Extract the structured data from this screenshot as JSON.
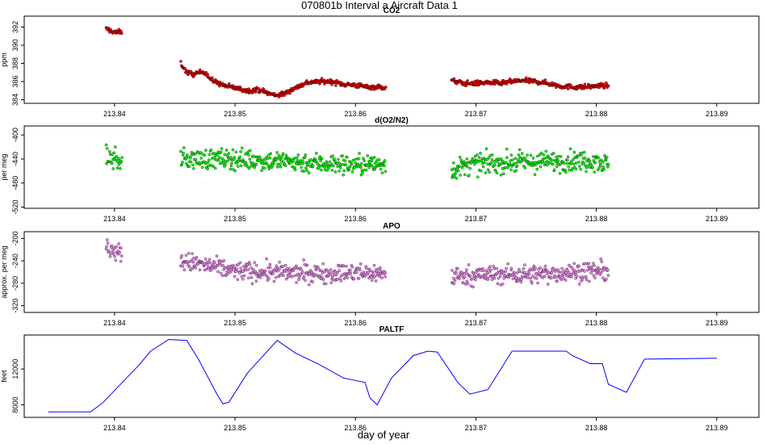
{
  "figure_title": "070801b   Interval a Aircraft Data 1",
  "xlabel": "day of year",
  "colors": {
    "co2_fill": "#ff0000",
    "o2n2_fill": "#00ff00",
    "apo_fill": "#ee82ee",
    "paltf_line": "#0000ff",
    "marker_edge": "#000000"
  },
  "chart_data": [
    {
      "type": "scatter",
      "title": "CO2",
      "ylabel": "ppm",
      "xlim": [
        213.8325,
        213.8935
      ],
      "x_ticks": [
        213.84,
        213.85,
        213.86,
        213.87,
        213.88,
        213.89
      ],
      "ylim": [
        383.6,
        393.2
      ],
      "y_ticks": [
        384,
        386,
        388,
        390,
        392
      ],
      "y_tick_labels": [
        "384",
        "386",
        "388",
        "390",
        "392"
      ],
      "noise": 0.25,
      "segments": [
        {
          "x": [
            213.8393,
            213.8397,
            213.8401,
            213.8406
          ],
          "y": [
            391.8,
            391.6,
            391.4,
            391.5
          ]
        },
        {
          "x": [
            213.8455,
            213.846,
            213.8465,
            213.8475,
            213.848,
            213.849,
            213.85,
            213.851,
            213.852,
            213.853,
            213.8535,
            213.854,
            213.855,
            213.856,
            213.857,
            213.858,
            213.859,
            213.86,
            213.861,
            213.862,
            213.8625
          ],
          "y": [
            388.0,
            387.0,
            386.8,
            387.1,
            386.2,
            385.6,
            385.3,
            385.0,
            385.1,
            384.6,
            384.5,
            384.6,
            385.3,
            385.9,
            386.0,
            386.0,
            385.7,
            385.6,
            385.4,
            385.4,
            385.3
          ]
        },
        {
          "x": [
            213.868,
            213.869,
            213.87,
            213.871,
            213.872,
            213.873,
            213.874,
            213.875,
            213.876,
            213.877,
            213.878,
            213.879,
            213.88,
            213.881
          ],
          "y": [
            386.1,
            385.8,
            385.8,
            385.9,
            385.8,
            386.0,
            386.1,
            386.0,
            385.8,
            385.5,
            385.4,
            385.4,
            385.5,
            385.6
          ]
        }
      ]
    },
    {
      "type": "scatter",
      "title": "d(O2/N2)",
      "ylabel": "per meg",
      "xlim": [
        213.8325,
        213.8935
      ],
      "x_ticks": [
        213.84,
        213.85,
        213.86,
        213.87,
        213.88,
        213.89
      ],
      "ylim": [
        -522,
        -385
      ],
      "y_ticks": [
        -520,
        -480,
        -440,
        -400
      ],
      "y_tick_labels": [
        "-520",
        "-480",
        "-440",
        "-400"
      ],
      "noise": 16,
      "segments": [
        {
          "x": [
            213.8393,
            213.84,
            213.8406
          ],
          "y": [
            -437,
            -440,
            -445
          ]
        },
        {
          "x": [
            213.8455,
            213.85,
            213.855,
            213.86,
            213.8625
          ],
          "y": [
            -440,
            -440,
            -445,
            -450,
            -448
          ]
        },
        {
          "x": [
            213.868,
            213.87,
            213.875,
            213.88,
            213.881
          ],
          "y": [
            -458,
            -448,
            -445,
            -442,
            -450
          ]
        }
      ]
    },
    {
      "type": "scatter",
      "title": "APO",
      "ylabel": "approx. per meg",
      "xlim": [
        213.8325,
        213.8935
      ],
      "x_ticks": [
        213.84,
        213.85,
        213.86,
        213.87,
        213.88,
        213.89
      ],
      "ylim": [
        -332,
        -188
      ],
      "y_ticks": [
        -320,
        -280,
        -240,
        -200
      ],
      "y_tick_labels": [
        "-320",
        "-280",
        "-240",
        "-200"
      ],
      "noise": 16,
      "segments": [
        {
          "x": [
            213.8393,
            213.84,
            213.8406
          ],
          "y": [
            -215,
            -222,
            -228
          ]
        },
        {
          "x": [
            213.8455,
            213.85,
            213.855,
            213.86,
            213.8625
          ],
          "y": [
            -240,
            -258,
            -262,
            -262,
            -262
          ]
        },
        {
          "x": [
            213.868,
            213.87,
            213.875,
            213.88,
            213.881
          ],
          "y": [
            -268,
            -265,
            -264,
            -258,
            -262
          ]
        }
      ]
    },
    {
      "type": "line",
      "title": "PALTF",
      "ylabel": "feet",
      "xlim": [
        213.8325,
        213.8935
      ],
      "x_ticks": [
        213.84,
        213.85,
        213.86,
        213.87,
        213.88,
        213.89
      ],
      "ylim": [
        6600,
        15800
      ],
      "y_ticks": [
        8000,
        12000
      ],
      "y_tick_labels": [
        "8000",
        "12000"
      ],
      "x": [
        213.8345,
        213.838,
        213.839,
        213.84,
        213.842,
        213.843,
        213.8445,
        213.846,
        213.847,
        213.8485,
        213.849,
        213.8495,
        213.851,
        213.8535,
        213.855,
        213.857,
        213.859,
        213.8608,
        213.8612,
        213.8618,
        213.863,
        213.8648,
        213.866,
        213.8668,
        213.8685,
        213.8695,
        213.871,
        213.873,
        213.8775,
        213.878,
        213.8795,
        213.8805,
        213.881,
        213.8825,
        213.884,
        213.89
      ],
      "y": [
        7200,
        7200,
        8200,
        9600,
        12400,
        14000,
        15300,
        15200,
        13000,
        9200,
        8100,
        8300,
        11500,
        15200,
        13800,
        12500,
        11000,
        10500,
        8800,
        8000,
        11000,
        13500,
        14000,
        13900,
        10500,
        9200,
        9700,
        14000,
        14000,
        13500,
        12600,
        12600,
        10300,
        9400,
        13100,
        13200
      ]
    }
  ]
}
